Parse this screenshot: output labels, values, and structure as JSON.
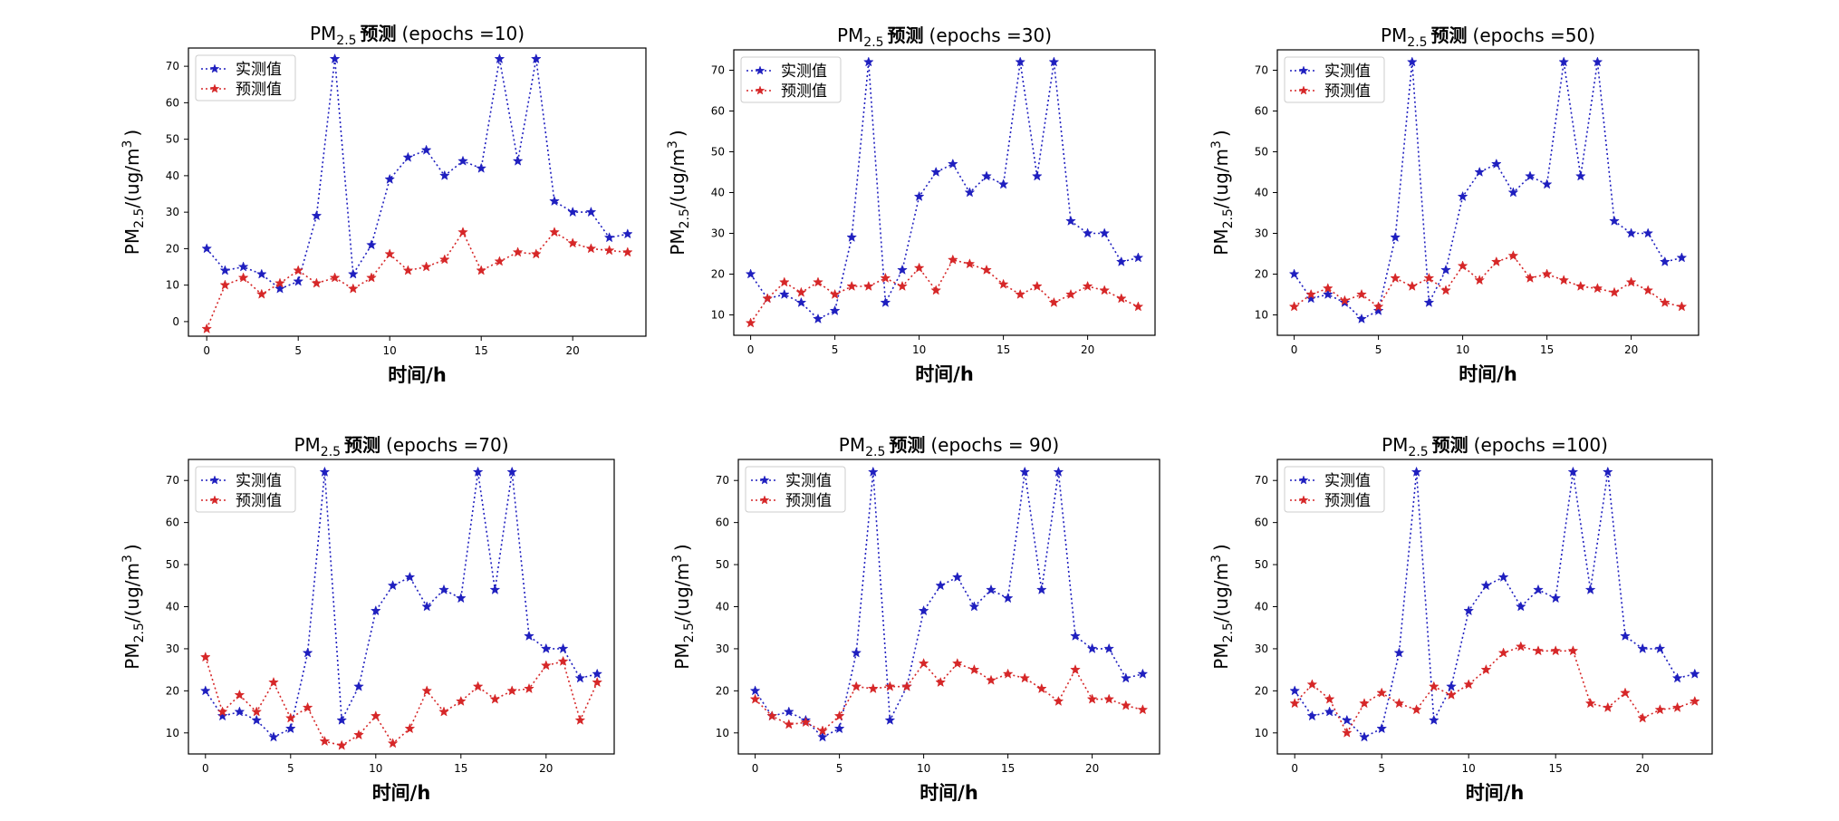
{
  "legend_labels": [
    "实测值",
    "预测值"
  ],
  "title_prefix": "PM",
  "title_subscript": "2.5",
  "title_word": "预测",
  "ylabel_prefix": "PM",
  "ylabel_subscript": "2.5",
  "ylabel_unit": "/(ug/m",
  "ylabel_sup": "3",
  "ylabel_close": ")",
  "xlabel": "时间/h",
  "colors": {
    "actual": "#1f1fbf",
    "predicted": "#d62728"
  },
  "chart_data": [
    {
      "type": "line",
      "title_suffix": "(epochs =10)",
      "xlabel": "时间/h",
      "x": [
        0,
        1,
        2,
        3,
        4,
        5,
        6,
        7,
        8,
        9,
        10,
        11,
        12,
        13,
        14,
        15,
        16,
        17,
        18,
        19,
        20,
        21,
        22,
        23
      ],
      "xticks": [
        0,
        5,
        10,
        15,
        20
      ],
      "xlim": [
        -1,
        24
      ],
      "ylim": [
        -4,
        75
      ],
      "yticks": [
        0,
        10,
        20,
        30,
        40,
        50,
        60,
        70
      ],
      "legend_position": "upper-left",
      "series": [
        {
          "name": "实测值",
          "values": [
            20,
            14,
            15,
            13,
            9,
            11,
            29,
            72,
            13,
            21,
            39,
            45,
            47,
            40,
            44,
            42,
            72,
            44,
            72,
            33,
            30,
            30,
            23,
            24
          ]
        },
        {
          "name": "预测值",
          "values": [
            -2,
            10,
            12,
            7.5,
            10.5,
            14,
            10.5,
            12,
            9,
            12,
            18.5,
            14,
            15,
            17,
            24.5,
            14,
            16.5,
            19,
            18.5,
            24.5,
            21.5,
            20,
            19.5,
            19
          ]
        }
      ]
    },
    {
      "type": "line",
      "title_suffix": "(epochs =30)",
      "xlabel": "时间/h",
      "x": [
        0,
        1,
        2,
        3,
        4,
        5,
        6,
        7,
        8,
        9,
        10,
        11,
        12,
        13,
        14,
        15,
        16,
        17,
        18,
        19,
        20,
        21,
        22,
        23
      ],
      "xticks": [
        0,
        5,
        10,
        15,
        20
      ],
      "xlim": [
        -1,
        24
      ],
      "ylim": [
        5,
        75
      ],
      "yticks": [
        10,
        20,
        30,
        40,
        50,
        60,
        70
      ],
      "legend_position": "upper-left",
      "series": [
        {
          "name": "实测值",
          "values": [
            20,
            14,
            15,
            13,
            9,
            11,
            29,
            72,
            13,
            21,
            39,
            45,
            47,
            40,
            44,
            42,
            72,
            44,
            72,
            33,
            30,
            30,
            23,
            24
          ]
        },
        {
          "name": "预测值",
          "values": [
            8,
            14,
            18,
            15.5,
            18,
            15,
            17,
            17,
            19,
            17,
            21.5,
            16,
            23.5,
            22.5,
            21,
            17.5,
            15,
            17,
            13,
            15,
            17,
            16,
            14,
            12
          ]
        }
      ]
    },
    {
      "type": "line",
      "title_suffix": "(epochs =50)",
      "xlabel": "时间/h",
      "x": [
        0,
        1,
        2,
        3,
        4,
        5,
        6,
        7,
        8,
        9,
        10,
        11,
        12,
        13,
        14,
        15,
        16,
        17,
        18,
        19,
        20,
        21,
        22,
        23
      ],
      "xticks": [
        0,
        5,
        10,
        15,
        20
      ],
      "xlim": [
        -1,
        24
      ],
      "ylim": [
        5,
        75
      ],
      "yticks": [
        10,
        20,
        30,
        40,
        50,
        60,
        70
      ],
      "legend_position": "upper-left",
      "series": [
        {
          "name": "实测值",
          "values": [
            20,
            14,
            15,
            13,
            9,
            11,
            29,
            72,
            13,
            21,
            39,
            45,
            47,
            40,
            44,
            42,
            72,
            44,
            72,
            33,
            30,
            30,
            23,
            24
          ]
        },
        {
          "name": "预测值",
          "values": [
            12,
            15,
            16.5,
            13.5,
            15,
            12,
            19,
            17,
            19,
            16,
            22,
            18.5,
            23,
            24.5,
            19,
            20,
            18.5,
            17,
            16.5,
            15.5,
            18,
            16,
            13,
            12
          ]
        }
      ]
    },
    {
      "type": "line",
      "title_suffix": "(epochs =70)",
      "xlabel": "时间/h",
      "x": [
        0,
        1,
        2,
        3,
        4,
        5,
        6,
        7,
        8,
        9,
        10,
        11,
        12,
        13,
        14,
        15,
        16,
        17,
        18,
        19,
        20,
        21,
        22,
        23
      ],
      "xticks": [
        0,
        5,
        10,
        15,
        20
      ],
      "xlim": [
        -1,
        24
      ],
      "ylim": [
        5,
        75
      ],
      "yticks": [
        10,
        20,
        30,
        40,
        50,
        60,
        70
      ],
      "legend_position": "upper-left",
      "series": [
        {
          "name": "实测值",
          "values": [
            20,
            14,
            15,
            13,
            9,
            11,
            29,
            72,
            13,
            21,
            39,
            45,
            47,
            40,
            44,
            42,
            72,
            44,
            72,
            33,
            30,
            30,
            23,
            24
          ]
        },
        {
          "name": "预测值",
          "values": [
            28,
            15,
            19,
            15,
            22,
            13.5,
            16,
            8,
            7,
            9.5,
            14,
            7.5,
            11,
            20,
            15,
            17.5,
            21,
            18,
            20,
            20.5,
            26,
            27,
            13,
            22
          ]
        }
      ]
    },
    {
      "type": "line",
      "title_suffix": "(epochs = 90)",
      "xlabel": "时间/h",
      "x": [
        0,
        1,
        2,
        3,
        4,
        5,
        6,
        7,
        8,
        9,
        10,
        11,
        12,
        13,
        14,
        15,
        16,
        17,
        18,
        19,
        20,
        21,
        22,
        23
      ],
      "xticks": [
        0,
        5,
        10,
        15,
        20
      ],
      "xlim": [
        -1,
        24
      ],
      "ylim": [
        5,
        75
      ],
      "yticks": [
        10,
        20,
        30,
        40,
        50,
        60,
        70
      ],
      "legend_position": "upper-left",
      "series": [
        {
          "name": "实测值",
          "values": [
            20,
            14,
            15,
            13,
            9,
            11,
            29,
            72,
            13,
            21,
            39,
            45,
            47,
            40,
            44,
            42,
            72,
            44,
            72,
            33,
            30,
            30,
            23,
            24
          ]
        },
        {
          "name": "预测值",
          "values": [
            18,
            14,
            12,
            12.5,
            10.5,
            14,
            21,
            20.5,
            21,
            21,
            26.5,
            22,
            26.5,
            25,
            22.5,
            24,
            23,
            20.5,
            17.5,
            25,
            18,
            18,
            16.5,
            15.5
          ]
        }
      ]
    },
    {
      "type": "line",
      "title_suffix": "(epochs =100)",
      "xlabel": "时间/h",
      "x": [
        0,
        1,
        2,
        3,
        4,
        5,
        6,
        7,
        8,
        9,
        10,
        11,
        12,
        13,
        14,
        15,
        16,
        17,
        18,
        19,
        20,
        21,
        22,
        23
      ],
      "xticks": [
        0,
        5,
        10,
        15,
        20
      ],
      "xlim": [
        -1,
        24
      ],
      "ylim": [
        5,
        75
      ],
      "yticks": [
        10,
        20,
        30,
        40,
        50,
        60,
        70
      ],
      "legend_position": "upper-left",
      "series": [
        {
          "name": "实测值",
          "values": [
            20,
            14,
            15,
            13,
            9,
            11,
            29,
            72,
            13,
            21,
            39,
            45,
            47,
            40,
            44,
            42,
            72,
            44,
            72,
            33,
            30,
            30,
            23,
            24
          ]
        },
        {
          "name": "预测值",
          "values": [
            17,
            21.5,
            18,
            10,
            17,
            19.5,
            17,
            15.5,
            21,
            19,
            21.5,
            25,
            29,
            30.5,
            29.5,
            29.5,
            29.5,
            17,
            16,
            19.5,
            13.5,
            15.5,
            16,
            17.5
          ]
        }
      ]
    }
  ]
}
